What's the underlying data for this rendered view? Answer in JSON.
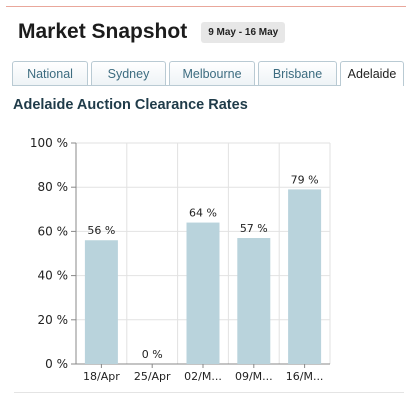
{
  "header": {
    "title": "Market Snapshot",
    "date_range": "9 May - 16 May"
  },
  "tabs": [
    {
      "label": "National",
      "active": false
    },
    {
      "label": "Sydney",
      "active": false
    },
    {
      "label": "Melbourne",
      "active": false
    },
    {
      "label": "Brisbane",
      "active": false
    },
    {
      "label": "Adelaide",
      "active": true
    }
  ],
  "section": {
    "title": "Adelaide Auction Clearance Rates"
  },
  "colors": {
    "bar": "#b9d3dc",
    "tab_text": "#3d6c80",
    "tab_border": "#b9cad3",
    "top_rule": "#e9a79b"
  },
  "chart_data": {
    "type": "bar",
    "categories": [
      "18/Apr",
      "25/Apr",
      "02/M...",
      "09/M...",
      "16/M..."
    ],
    "values": [
      56,
      0,
      64,
      57,
      79
    ],
    "data_labels": [
      "56 %",
      "0 %",
      "64 %",
      "57 %",
      "79 %"
    ],
    "yticks": [
      "0 %",
      "20 %",
      "40 %",
      "60 %",
      "80 %",
      "100 %"
    ],
    "ylim": [
      0,
      100
    ],
    "grid": true,
    "title": "",
    "xlabel": "",
    "ylabel": ""
  }
}
